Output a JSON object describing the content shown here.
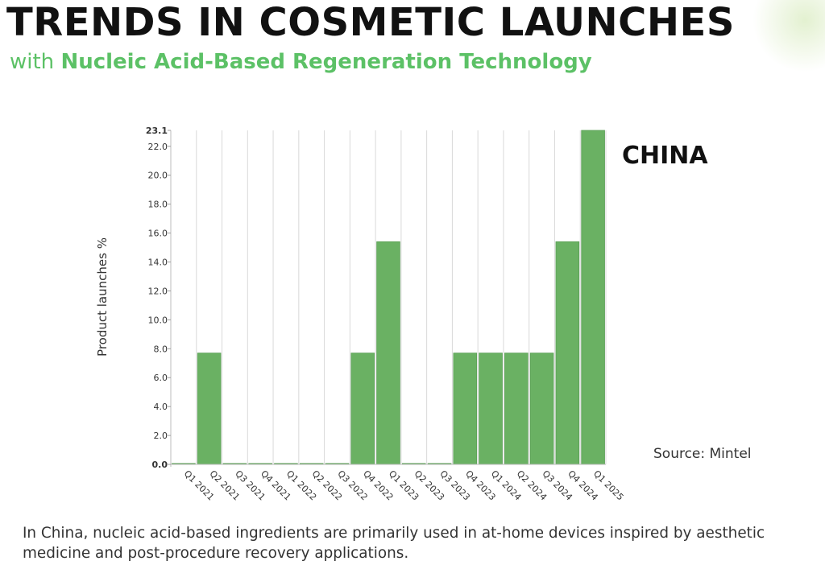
{
  "header": {
    "title": "TRENDS IN COSMETIC LAUNCHES",
    "subtitle_prefix": "with",
    "subtitle_highlight": "Nucleic Acid-Based Regeneration Technology"
  },
  "chart_label": "CHINA",
  "source": "Source: Mintel",
  "caption": "In China, nucleic acid-based ingredients are primarily used in at-home devices inspired by aesthetic medicine and post-procedure recovery applications.",
  "colors": {
    "bar": "#6ab163",
    "bar_stroke": "#5a9f55",
    "accent": "#5cc166",
    "gridline": "#d9d9d9"
  },
  "chart_data": {
    "type": "bar",
    "xlabel": "",
    "ylabel": "Product launches %",
    "categories": [
      "Q1 2021",
      "Q2 2021",
      "Q3 2021",
      "Q4 2021",
      "Q1 2022",
      "Q2 2022",
      "Q3 2022",
      "Q4 2022",
      "Q1 2023",
      "Q2 2023",
      "Q3 2023",
      "Q4 2023",
      "Q1 2024",
      "Q2 2024",
      "Q3 2024",
      "Q4 2024",
      "Q1 2025"
    ],
    "values": [
      0,
      7.7,
      0,
      0,
      0,
      0,
      0,
      7.7,
      15.4,
      0,
      0,
      7.7,
      7.7,
      7.7,
      7.7,
      15.4,
      23.1
    ],
    "ylim": [
      0,
      23.1
    ],
    "yticks": [
      "0.0",
      "2.0",
      "4.0",
      "6.0",
      "8.0",
      "10.0",
      "12.0",
      "14.0",
      "16.0",
      "18.0",
      "20.0",
      "22.0",
      "23.1"
    ],
    "grid": "vertical",
    "legend": "none"
  }
}
